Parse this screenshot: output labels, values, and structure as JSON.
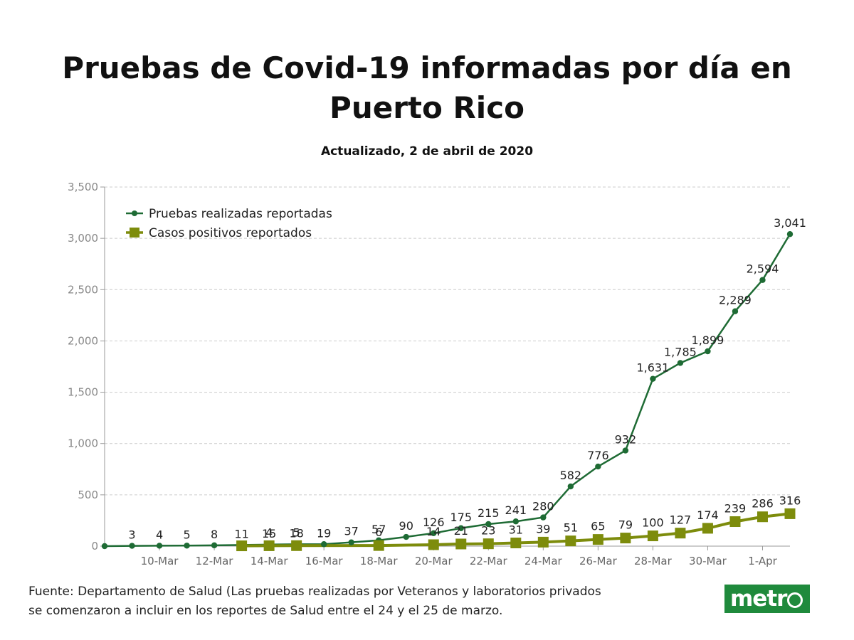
{
  "header": {
    "title_line1": "Pruebas de Covid-19  informadas por día en",
    "title_line2": "Puerto Rico",
    "subtitle": "Actualizado, 2 de abril de 2020"
  },
  "footer": {
    "source_line1": "Fuente: Departamento de Salud (Las pruebas realizadas por Veteranos y laboratorios privados",
    "source_line2": "se comenzaron a incluir en los reportes de Salud entre el 24 y el 25 de marzo.",
    "logo_text": "metr"
  },
  "colors": {
    "tests": "#1e6b34",
    "positives": "#7d8c0c",
    "grid": "#cccccc",
    "axis": "#999999"
  },
  "chart_data": {
    "type": "line",
    "title": "Pruebas de Covid-19  informadas por día en Puerto Rico",
    "subtitle": "Actualizado, 2 de abril de 2020",
    "xlabel": "",
    "ylabel": "",
    "ylim": [
      0,
      3500
    ],
    "yticks": [
      0,
      500,
      1000,
      1500,
      2000,
      2500,
      3000,
      3500
    ],
    "ytick_labels": [
      "0",
      "500",
      "1,000",
      "1,500",
      "2,000",
      "2,500",
      "3,000",
      "3,500"
    ],
    "grid": "horizontal dashed",
    "legend_position": "top-left",
    "x": [
      "8-Mar",
      "9-Mar",
      "10-Mar",
      "11-Mar",
      "12-Mar",
      "13-Mar",
      "14-Mar",
      "15-Mar",
      "16-Mar",
      "17-Mar",
      "18-Mar",
      "19-Mar",
      "20-Mar",
      "21-Mar",
      "22-Mar",
      "23-Mar",
      "24-Mar",
      "25-Mar",
      "26-Mar",
      "27-Mar",
      "28-Mar",
      "29-Mar",
      "30-Mar",
      "31-Mar",
      "1-Apr",
      "2-Apr"
    ],
    "xtick_labels": [
      "10-Mar",
      "12-Mar",
      "14-Mar",
      "16-Mar",
      "18-Mar",
      "20-Mar",
      "22-Mar",
      "24-Mar",
      "26-Mar",
      "28-Mar",
      "30-Mar",
      "1-Apr"
    ],
    "xtick_index": [
      2,
      4,
      6,
      8,
      10,
      12,
      14,
      16,
      18,
      20,
      22,
      24
    ],
    "series": [
      {
        "name": "Pruebas realizadas reportadas",
        "marker": "circle",
        "values": [
          0,
          3,
          4,
          5,
          8,
          11,
          15,
          18,
          19,
          37,
          57,
          90,
          126,
          175,
          215,
          241,
          280,
          582,
          776,
          932,
          1631,
          1785,
          1899,
          2289,
          2594,
          3041
        ],
        "labels": [
          null,
          "3",
          "4",
          "5",
          "8",
          "11",
          "15",
          "18",
          "19",
          "37",
          "57",
          "90",
          "126",
          "175",
          "215",
          "241",
          "280",
          "582",
          "776",
          "932",
          "1,631",
          "1,785",
          "1,899",
          "2,289",
          "2,594",
          "3,041"
        ]
      },
      {
        "name": "Casos positivos reportados",
        "marker": "square",
        "values": [
          null,
          null,
          null,
          null,
          null,
          3,
          4,
          5,
          null,
          null,
          6,
          null,
          14,
          21,
          23,
          31,
          39,
          51,
          65,
          79,
          100,
          127,
          174,
          239,
          286,
          316
        ],
        "labels": [
          null,
          null,
          null,
          null,
          null,
          null,
          "4",
          "5",
          null,
          null,
          "6",
          null,
          "14",
          "21",
          "23",
          "31",
          "39",
          "51",
          "65",
          "79",
          "100",
          "127",
          "174",
          "239",
          "286",
          "316"
        ]
      }
    ]
  }
}
